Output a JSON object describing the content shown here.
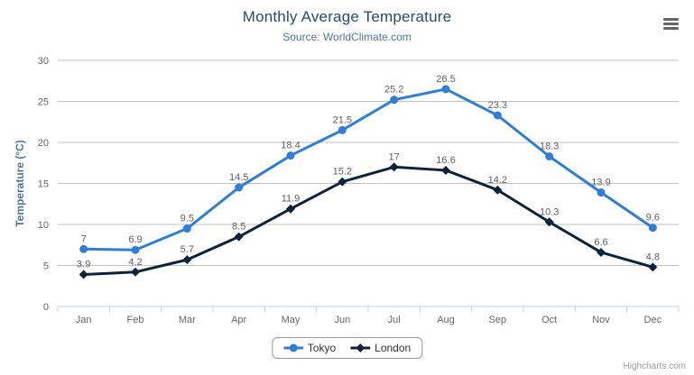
{
  "credits": {
    "label": "Highcharts.com"
  },
  "menu": {
    "icon": "hamburger-icon"
  },
  "colors": {
    "title": "#274b6d",
    "subtitle": "#4d759e",
    "axis_title": "#4d759e",
    "axis_label": "#666666",
    "data_label": "#606060",
    "grid": "#c0c0c0",
    "axis_line": "#c0d0e0",
    "legend_text": "#333333",
    "legend_border": "#999999",
    "credits": "#999999",
    "menu_icon": "#666666"
  },
  "chart_data": {
    "type": "line",
    "title": "Monthly Average Temperature",
    "subtitle": "Source: WorldClimate.com",
    "categories": [
      "Jan",
      "Feb",
      "Mar",
      "Apr",
      "May",
      "Jun",
      "Jul",
      "Aug",
      "Sep",
      "Oct",
      "Nov",
      "Dec"
    ],
    "series": [
      {
        "name": "Tokyo",
        "color": "#2f7ed8",
        "marker": "circle",
        "values": [
          7,
          6.9,
          9.5,
          14.5,
          18.4,
          21.5,
          25.2,
          26.5,
          23.3,
          18.3,
          13.9,
          9.6
        ]
      },
      {
        "name": "London",
        "color": "#0d233a",
        "marker": "diamond",
        "values": [
          3.9,
          4.2,
          5.7,
          8.5,
          11.9,
          15.2,
          17,
          16.6,
          14.2,
          10.3,
          6.6,
          4.8
        ]
      }
    ],
    "xlabel": "",
    "ylabel": "Temperature (°C)",
    "ylim": [
      0,
      30
    ],
    "yticks": [
      0,
      5,
      10,
      15,
      20,
      25,
      30
    ],
    "grid": true,
    "legend_position": "bottom",
    "data_labels": true
  }
}
